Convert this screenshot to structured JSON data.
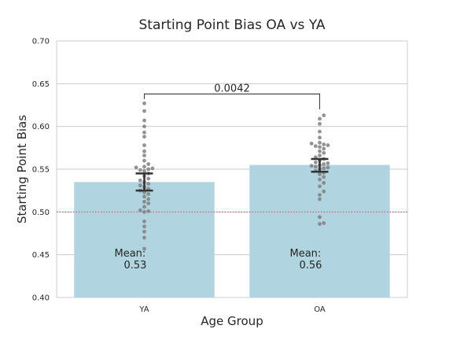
{
  "chart_data": {
    "type": "bar",
    "title": "Starting Point Bias OA vs YA",
    "xlabel": "Age Group",
    "ylabel": "Starting Point Bias",
    "ylim": [
      0.4,
      0.7
    ],
    "yticks": [
      0.4,
      0.45,
      0.5,
      0.55,
      0.6,
      0.65,
      0.7
    ],
    "ytick_labels": [
      "0.40",
      "0.45",
      "0.50",
      "0.55",
      "0.60",
      "0.65",
      "0.70"
    ],
    "grid": true,
    "categories": [
      "YA",
      "OA"
    ],
    "values": [
      0.535,
      0.555
    ],
    "bar_color": "#b0d4e0",
    "reference_line": {
      "y": 0.5,
      "color": "#c06070",
      "style": "dotted"
    },
    "error_bars": [
      {
        "low": 0.525,
        "high": 0.545
      },
      {
        "low": 0.547,
        "high": 0.562
      }
    ],
    "mean_labels": [
      {
        "label": "Mean:",
        "value": "0.53"
      },
      {
        "label": "Mean:",
        "value": "0.56"
      }
    ],
    "significance": {
      "text": "0.0042",
      "y": 0.638,
      "drop_to": [
        0.632,
        0.62
      ]
    },
    "points": [
      [
        0.627,
        0.618,
        0.607,
        0.6,
        0.593,
        0.588,
        0.578,
        0.571,
        0.566,
        0.56,
        0.556,
        0.553,
        0.552,
        0.551,
        0.55,
        0.549,
        0.548,
        0.545,
        0.542,
        0.539,
        0.537,
        0.535,
        0.533,
        0.531,
        0.529,
        0.527,
        0.525,
        0.523,
        0.521,
        0.518,
        0.515,
        0.512,
        0.51,
        0.506,
        0.502,
        0.501,
        0.5,
        0.489,
        0.483,
        0.477,
        0.47,
        0.457
      ],
      [
        0.613,
        0.609,
        0.603,
        0.594,
        0.587,
        0.581,
        0.58,
        0.579,
        0.578,
        0.577,
        0.576,
        0.574,
        0.571,
        0.569,
        0.566,
        0.564,
        0.562,
        0.56,
        0.558,
        0.557,
        0.556,
        0.555,
        0.554,
        0.553,
        0.552,
        0.551,
        0.55,
        0.548,
        0.546,
        0.544,
        0.541,
        0.538,
        0.534,
        0.53,
        0.524,
        0.52,
        0.515,
        0.494,
        0.487,
        0.486
      ]
    ],
    "point_color": "#808080"
  }
}
